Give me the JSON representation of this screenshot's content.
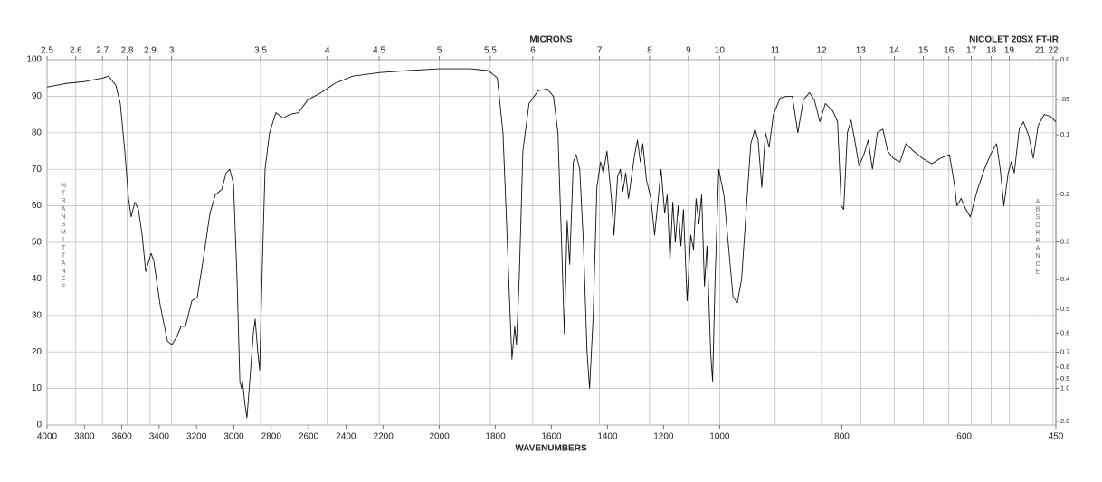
{
  "chart_data": {
    "type": "line",
    "title": "NICOLET 20SX FT-IR",
    "xlabel": "WAVENUMBERS",
    "x2label": "MICRONS",
    "ylabel": "%TRANSMITTANCE",
    "y2label": "ABSORBANCE",
    "color": "#111111",
    "grid": true,
    "xscale": "segmented",
    "xbreaks": [
      2200,
      1000
    ],
    "xlim": [
      4000,
      450
    ],
    "xticks": [
      4000,
      3800,
      3600,
      3400,
      3200,
      3000,
      2800,
      2600,
      2400,
      2200,
      2000,
      1800,
      1600,
      1400,
      1200,
      1000,
      800,
      600,
      450
    ],
    "x2ticks": [
      2.5,
      2.6,
      2.7,
      2.8,
      2.9,
      3,
      3.5,
      4,
      4.5,
      5,
      5.5,
      6,
      7,
      8,
      9,
      10,
      11,
      12,
      13,
      14,
      15,
      16,
      17,
      18,
      19,
      21,
      22
    ],
    "ylim": [
      0,
      100
    ],
    "yticks": [
      0,
      10,
      20,
      30,
      40,
      50,
      60,
      70,
      80,
      90,
      100
    ],
    "y2ticks": [
      {
        "value": 0,
        "label": "0.0"
      },
      {
        "value": 0.05,
        "label": ".05"
      },
      0.1,
      0.2,
      0.3,
      0.4,
      0.5,
      0.6,
      0.7,
      0.8,
      0.9,
      {
        "value": 1,
        "label": "1.0"
      },
      {
        "value": 2,
        "label": "2.0"
      }
    ],
    "x": [
      4000,
      3900,
      3800,
      3700,
      3671,
      3632,
      3608,
      3584,
      3564,
      3550,
      3530,
      3511,
      3491,
      3472,
      3443,
      3429,
      3395,
      3356,
      3332,
      3307,
      3283,
      3259,
      3225,
      3196,
      3162,
      3128,
      3099,
      3065,
      3041,
      3022,
      3002,
      2983,
      2968,
      2959,
      2954,
      2939,
      2930,
      2915,
      2896,
      2886,
      2872,
      2862,
      2847,
      2833,
      2809,
      2775,
      2736,
      2702,
      2654,
      2605,
      2532,
      2460,
      2363,
      2218,
      2115,
      2002,
      1889,
      1825,
      1793,
      1773,
      1760,
      1750,
      1741,
      1731,
      1725,
      1715,
      1702,
      1680,
      1648,
      1615,
      1593,
      1577,
      1564,
      1554,
      1544,
      1535,
      1522,
      1512,
      1499,
      1486,
      1473,
      1464,
      1451,
      1438,
      1425,
      1415,
      1402,
      1386,
      1377,
      1364,
      1354,
      1345,
      1335,
      1325,
      1316,
      1303,
      1293,
      1283,
      1274,
      1261,
      1245,
      1232,
      1219,
      1209,
      1196,
      1187,
      1177,
      1167,
      1158,
      1148,
      1138,
      1129,
      1116,
      1103,
      1093,
      1084,
      1074,
      1064,
      1054,
      1045,
      1032,
      1025,
      1016,
      1003,
      993,
      986,
      978,
      971,
      964,
      956,
      949,
      942,
      937,
      931,
      925,
      919,
      912,
      901,
      890,
      881,
      872,
      863,
      853,
      845,
      836,
      827,
      815,
      807,
      801,
      797,
      791,
      785,
      779,
      772,
      764,
      757,
      750,
      742,
      733,
      725,
      716,
      705,
      695,
      683,
      668,
      653,
      639,
      624,
      616,
      612,
      605,
      597,
      590,
      579,
      567,
      557,
      547,
      541,
      535,
      528,
      523,
      518,
      510,
      503,
      494,
      487,
      479,
      469,
      459,
      450
    ],
    "values": [
      92.5,
      93.5,
      94,
      95,
      95.5,
      93,
      88,
      75,
      62,
      57,
      61,
      59,
      52,
      42,
      47,
      45,
      33,
      23,
      22,
      24,
      27,
      27,
      34,
      35,
      46,
      58,
      63,
      64.5,
      69,
      70,
      66,
      40,
      12,
      10,
      12,
      5,
      2,
      12,
      25,
      29,
      20,
      15,
      45,
      70,
      80,
      85.5,
      84,
      85,
      85.5,
      89,
      91,
      93.5,
      95.5,
      96.5,
      97,
      97.5,
      97.5,
      97,
      95,
      80,
      55,
      35,
      18,
      27,
      22,
      40,
      75,
      88,
      91.5,
      92,
      90,
      80,
      50,
      25,
      56,
      44,
      72,
      74,
      70,
      50,
      20,
      10,
      30,
      65,
      72,
      69,
      75,
      62,
      52,
      68,
      70,
      64,
      69,
      62,
      67,
      74,
      78,
      72,
      77,
      67,
      62,
      52,
      62,
      70,
      58,
      63,
      45,
      61,
      50,
      60,
      49,
      59,
      34,
      52,
      48,
      62,
      55,
      63,
      38,
      49,
      20,
      12,
      40,
      70,
      63,
      50,
      35,
      33.5,
      40,
      60,
      77,
      81,
      78,
      65,
      80,
      76,
      85,
      89.5,
      90,
      90,
      80,
      89,
      91,
      89,
      83,
      88,
      86,
      83,
      60,
      59,
      80,
      83.5,
      78,
      71,
      74,
      78,
      70,
      80,
      81,
      75,
      73,
      72,
      77,
      75,
      73,
      71.5,
      73,
      74,
      66,
      60,
      62,
      59,
      57,
      64,
      70,
      74,
      77,
      70,
      60,
      69,
      72,
      69,
      81,
      83,
      79,
      73,
      82,
      85,
      84.5,
      83
    ]
  }
}
